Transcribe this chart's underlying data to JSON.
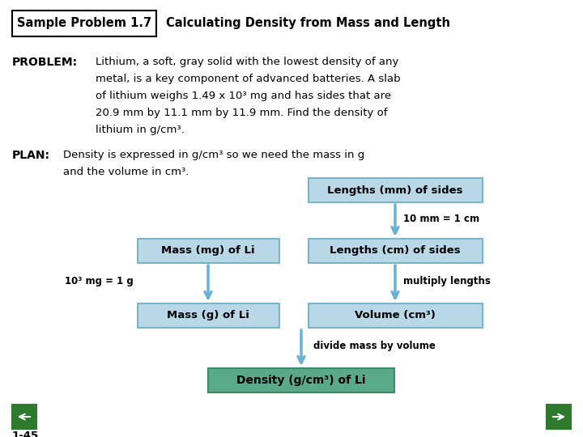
{
  "title_box": "Sample Problem 1.7",
  "title_main": "Calculating Density from Mass and Length",
  "problem_label": "PROBLEM:",
  "plan_label": "PLAN:",
  "bg_color": "#ffffff",
  "green_color": "#2d7a2d",
  "page_num": "1-45",
  "problem_lines": [
    "Lithium, a soft, gray solid with the lowest density of any",
    "metal, is a key component of advanced batteries. A slab",
    "of lithium weighs 1.49 x 10³ mg and has sides that are",
    "20.9 mm by 11.1 mm by 11.9 mm. Find the density of",
    "lithium in g/cm³."
  ],
  "plan_lines": [
    "Density is expressed in g/cm³ so we need the mass in g",
    "and the volume in cm³."
  ],
  "light_blue": "#b8d8e8",
  "teal_green": "#5aaa8a",
  "arrow_color": "#6ab0d4",
  "border_color": "#7ab4c8",
  "boxes": [
    {
      "label": "Lengths (mm) of sides",
      "col": "right",
      "row": 0
    },
    {
      "label": "Mass (mg) of Li",
      "col": "left",
      "row": 1
    },
    {
      "label": "Lengths (cm) of sides",
      "col": "right",
      "row": 1
    },
    {
      "label": "Mass (g) of Li",
      "col": "left",
      "row": 2
    },
    {
      "label": "Volume (cm³)",
      "col": "right",
      "row": 2
    },
    {
      "label": "Density (g/cm³) of Li",
      "col": "center",
      "row": 3
    }
  ]
}
